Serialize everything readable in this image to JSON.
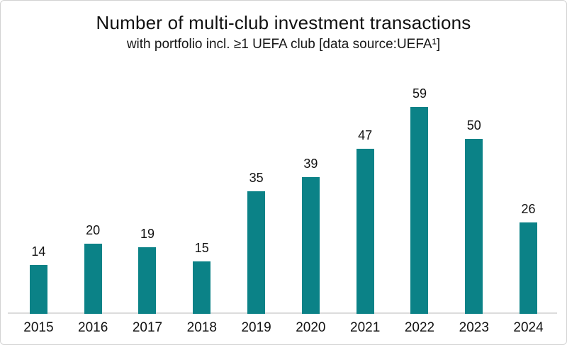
{
  "chart_data": {
    "type": "bar",
    "title": "Number of multi-club investment transactions",
    "subtitle": "with portfolio incl. ≥1 UEFA club [data source:UEFA¹]",
    "categories": [
      "2015",
      "2016",
      "2017",
      "2018",
      "2019",
      "2020",
      "2021",
      "2022",
      "2023",
      "2024"
    ],
    "values": [
      14,
      20,
      19,
      15,
      35,
      39,
      47,
      59,
      50,
      26
    ],
    "xlabel": "",
    "ylabel": "",
    "ylim": [
      0,
      60
    ],
    "grid": false,
    "legend": "none",
    "data_labels": true,
    "bar_color": "#0b8287",
    "axis_line_color": "#dcdcdc",
    "text_color": "#111111",
    "background_color": "#ffffff"
  }
}
